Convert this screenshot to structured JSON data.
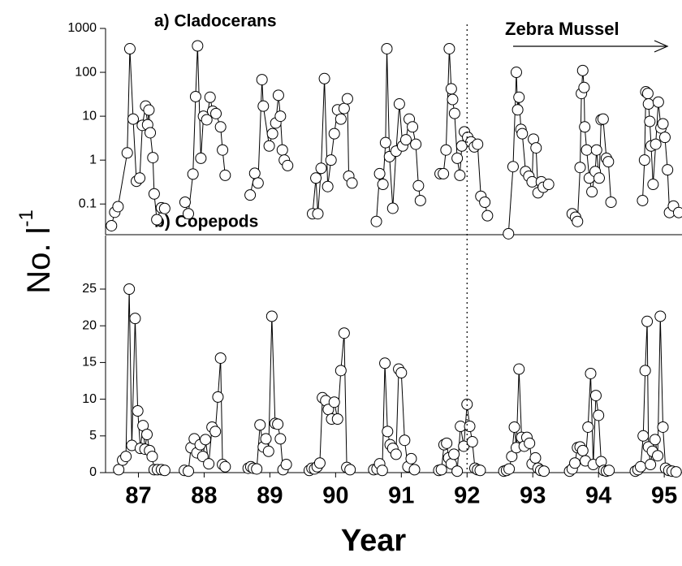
{
  "ylabel": "No. l",
  "ylabel_superscript": "-1",
  "xlabel": "Year",
  "zebra_mussel_start": 92.5,
  "chart_data": [
    {
      "type": "line",
      "title": "a) Cladocerans",
      "annotation": "Zebra Mussel",
      "log_scale": true,
      "xlim": [
        87,
        95.77
      ],
      "ylim": [
        0.02,
        1000
      ],
      "yticks": [
        0.1,
        1,
        10,
        100,
        1000
      ],
      "series": [
        {
          "name": null,
          "color": "#000000",
          "x": [
            87.09,
            87.14,
            87.19,
            87.33,
            87.37,
            87.42,
            87.47,
            87.52,
            87.56,
            87.61,
            87.64,
            87.66,
            87.68,
            87.72,
            87.74,
            87.78,
            87.85,
            87.9,
            null,
            88.21,
            88.26,
            88.33,
            88.37,
            88.4,
            88.45,
            88.49,
            88.54,
            88.59,
            88.63,
            88.68,
            88.75,
            88.78,
            88.82,
            null,
            89.2,
            89.27,
            89.32,
            89.38,
            89.4,
            89.49,
            89.54,
            89.59,
            89.63,
            89.66,
            89.69,
            89.72,
            89.77,
            null,
            90.15,
            90.2,
            90.23,
            90.28,
            90.33,
            90.38,
            90.43,
            90.48,
            90.53,
            90.58,
            90.63,
            90.68,
            90.7,
            90.75,
            null,
            91.12,
            91.17,
            91.22,
            91.26,
            91.28,
            91.32,
            91.37,
            91.42,
            91.47,
            91.52,
            91.57,
            91.62,
            91.67,
            91.72,
            91.76,
            91.79,
            null,
            92.09,
            92.14,
            92.18,
            92.23,
            92.26,
            92.28,
            92.31,
            92.35,
            92.39,
            92.42,
            92.46,
            92.51,
            92.56,
            92.61,
            92.66,
            92.71,
            92.77,
            92.81,
            null,
            93.13,
            93.2,
            93.25,
            93.27,
            93.29,
            93.32,
            93.34,
            93.39,
            93.44,
            93.49,
            93.51,
            93.55,
            93.58,
            93.63,
            93.66,
            93.74,
            null,
            94.1,
            94.15,
            94.18,
            94.22,
            94.24,
            94.26,
            94.28,
            94.29,
            94.32,
            94.36,
            94.4,
            94.45,
            94.47,
            94.51,
            94.54,
            94.57,
            94.62,
            94.65,
            94.69,
            null,
            95.17,
            95.2,
            95.22,
            95.25,
            95.26,
            95.28,
            95.3,
            95.33,
            95.37,
            95.41,
            95.45,
            95.48,
            95.51,
            95.55,
            95.58,
            95.64,
            95.72
          ],
          "values": [
            0.032,
            0.065,
            0.087,
            1.46,
            344,
            8.6,
            0.33,
            0.39,
            6.2,
            17,
            6.4,
            13.8,
            4.2,
            1.14,
            0.17,
            0.044,
            0.082,
            0.079,
            null,
            0.11,
            0.06,
            0.48,
            28,
            400,
            1.1,
            10,
            8.3,
            27,
            13,
            11.5,
            5.7,
            1.7,
            0.45,
            null,
            0.16,
            0.5,
            0.3,
            68,
            17,
            2.1,
            4,
            7,
            30,
            10,
            1.7,
            1.0,
            0.75,
            null,
            0.06,
            0.39,
            0.06,
            0.65,
            72,
            0.25,
            1.0,
            4,
            14,
            8.6,
            15,
            25,
            0.43,
            0.3,
            null,
            0.04,
            0.49,
            0.28,
            2.5,
            345,
            1.2,
            0.08,
            1.6,
            19,
            2.1,
            2.9,
            8.6,
            5.7,
            2.3,
            0.26,
            0.12,
            null,
            0.49,
            0.49,
            1.7,
            345,
            42,
            24,
            11.6,
            1.1,
            0.45,
            2.1,
            4.4,
            3.3,
            2.6,
            2.0,
            2.3,
            0.15,
            0.11,
            0.054,
            null,
            0.021,
            0.71,
            100,
            14,
            27,
            5,
            4,
            0.55,
            0.43,
            0.32,
            3,
            1.9,
            0.18,
            0.32,
            0.24,
            0.28,
            null,
            0.06,
            0.05,
            0.04,
            0.68,
            33,
            110,
            45,
            5.7,
            1.7,
            0.39,
            0.19,
            0.55,
            1.7,
            0.39,
            8.3,
            8.6,
            1.1,
            0.92,
            0.11,
            null,
            0.12,
            1.0,
            36,
            33,
            19,
            7.6,
            2.1,
            0.28,
            2.3,
            21,
            5.4,
            6.7,
            3.3,
            0.6,
            0.064,
            0.09,
            0.064
          ]
        }
      ]
    },
    {
      "type": "line",
      "title": "b) Copepods",
      "log_scale": false,
      "xlim": [
        87,
        95.77
      ],
      "ylim": [
        0,
        32.3
      ],
      "yticks": [
        0,
        5,
        10,
        15,
        20,
        25
      ],
      "xticks": [
        {
          "value": 87.5,
          "label": "87"
        },
        {
          "value": 88.5,
          "label": "88"
        },
        {
          "value": 89.5,
          "label": "89"
        },
        {
          "value": 90.5,
          "label": "90"
        },
        {
          "value": 91.5,
          "label": "91"
        },
        {
          "value": 92.5,
          "label": "92"
        },
        {
          "value": 93.5,
          "label": "93"
        },
        {
          "value": 94.5,
          "label": "94"
        },
        {
          "value": 95.5,
          "label": "95"
        }
      ],
      "series": [
        {
          "name": null,
          "color": "#000000",
          "x": [
            87.2,
            87.26,
            87.31,
            87.36,
            87.4,
            87.45,
            87.49,
            87.53,
            87.57,
            87.6,
            87.63,
            87.67,
            87.71,
            87.74,
            87.79,
            87.85,
            87.9,
            null,
            88.2,
            88.26,
            88.3,
            88.35,
            88.39,
            88.44,
            88.48,
            88.52,
            88.57,
            88.62,
            88.67,
            88.71,
            88.75,
            88.78,
            88.82,
            null,
            89.17,
            89.21,
            89.25,
            89.3,
            89.35,
            89.4,
            89.44,
            89.48,
            89.53,
            89.58,
            89.62,
            89.66,
            89.7,
            89.75,
            null,
            90.1,
            90.14,
            90.18,
            90.22,
            90.26,
            90.3,
            90.35,
            90.39,
            90.44,
            90.48,
            90.53,
            90.58,
            90.63,
            90.67,
            90.72,
            null,
            91.08,
            91.13,
            91.17,
            91.21,
            91.25,
            91.29,
            91.33,
            91.37,
            91.42,
            91.46,
            91.5,
            91.55,
            91.6,
            91.65,
            91.7,
            null,
            92.07,
            92.11,
            92.15,
            92.19,
            92.22,
            92.26,
            92.3,
            92.35,
            92.4,
            92.45,
            92.5,
            92.54,
            92.58,
            92.62,
            92.66,
            92.7,
            null,
            93.06,
            93.1,
            93.14,
            93.18,
            93.22,
            93.25,
            93.29,
            93.33,
            93.37,
            93.41,
            93.45,
            93.49,
            93.54,
            93.58,
            93.62,
            93.67,
            null,
            94.06,
            94.1,
            94.14,
            94.18,
            94.22,
            94.26,
            94.3,
            94.34,
            94.38,
            94.42,
            94.46,
            94.5,
            94.54,
            94.58,
            94.62,
            94.66,
            null,
            95.06,
            95.1,
            95.14,
            95.18,
            95.21,
            95.24,
            95.26,
            95.29,
            95.32,
            95.36,
            95.4,
            95.44,
            95.48,
            95.52,
            95.57,
            95.62,
            95.68
          ],
          "values": [
            0.4,
            1.7,
            2.2,
            25,
            3.7,
            21,
            8.4,
            3.3,
            6.4,
            3.2,
            5.2,
            3,
            2.2,
            0.4,
            0.4,
            0.4,
            0.3,
            null,
            0.3,
            0.2,
            3.4,
            4.6,
            2.7,
            3.8,
            2.2,
            4.5,
            1.2,
            6.2,
            5.6,
            10.3,
            15.6,
            1.1,
            0.8,
            null,
            0.6,
            0.8,
            0.6,
            0.5,
            6.5,
            3.5,
            4.6,
            2.9,
            21.3,
            6.7,
            6.6,
            4.6,
            0.4,
            1.1,
            null,
            0.3,
            0.6,
            0.5,
            0.8,
            1.3,
            10.2,
            9.8,
            8.6,
            7.3,
            9.6,
            7.3,
            13.9,
            19,
            0.7,
            0.4,
            null,
            0.4,
            0.5,
            1.2,
            0.3,
            14.9,
            5.6,
            3.8,
            3.3,
            2.5,
            14.1,
            13.6,
            4.4,
            0.8,
            1.9,
            0.4,
            null,
            0.3,
            0.4,
            3.8,
            4,
            2,
            1.2,
            2.5,
            0.2,
            6.3,
            3.6,
            9.3,
            6.3,
            4.2,
            0.6,
            0.4,
            0.3,
            null,
            0.2,
            0.3,
            0.5,
            2.2,
            6.2,
            3.4,
            14.1,
            4.8,
            3.6,
            4.8,
            4,
            1.2,
            2,
            0.6,
            0.3,
            0.2,
            null,
            0.2,
            0.5,
            1.3,
            3.4,
            3.5,
            3,
            1.6,
            6.2,
            13.5,
            1.1,
            10.5,
            7.8,
            1.5,
            0.3,
            0.2,
            0.3,
            null,
            0.2,
            0.4,
            0.8,
            5,
            13.9,
            20.6,
            3.5,
            1.1,
            2.9,
            4.5,
            2.3,
            21.3,
            6.2,
            0.6,
            0.3,
            0.2,
            0.1
          ]
        }
      ]
    }
  ]
}
